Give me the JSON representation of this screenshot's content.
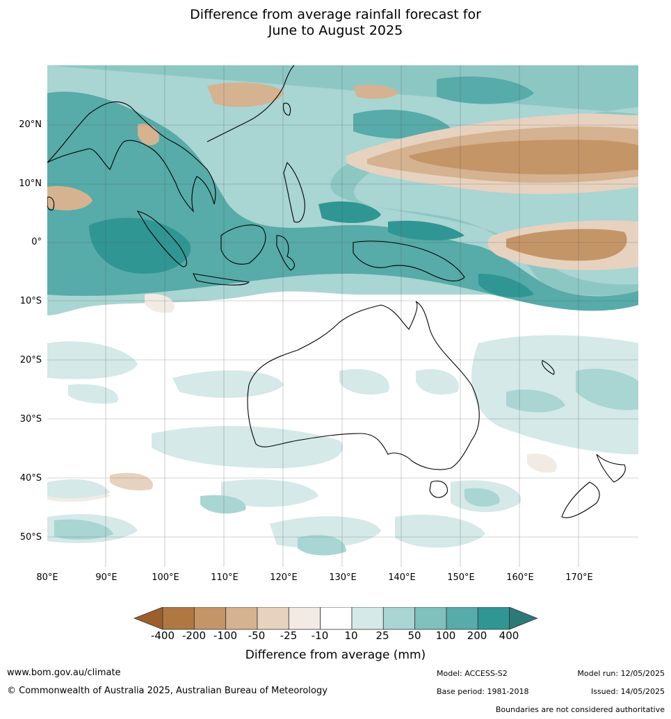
{
  "title_line1": "Difference from average rainfall forecast for",
  "title_line2": "June to August 2025",
  "lat_labels": [
    "20°N",
    "10°N",
    "0°",
    "10°S",
    "20°S",
    "30°S",
    "40°S",
    "50°S"
  ],
  "lon_labels": [
    "80°E",
    "90°E",
    "100°E",
    "110°E",
    "120°E",
    "130°E",
    "140°E",
    "150°E",
    "160°E",
    "170°E"
  ],
  "colorbar": {
    "title": "Difference from average (mm)",
    "ticks": [
      "-400",
      "-200",
      "-100",
      "-50",
      "-25",
      "-10",
      "10",
      "25",
      "50",
      "100",
      "200",
      "400"
    ],
    "colors": [
      "#9c5f2c",
      "#b07840",
      "#c49566",
      "#d5b290",
      "#e6d2bf",
      "#f2ebe4",
      "#ffffff",
      "#d4e9e8",
      "#a9d5d3",
      "#80c0bd",
      "#57aba8",
      "#2f9693",
      "#2b7a77"
    ]
  },
  "footer": {
    "url": "www.bom.gov.au/climate",
    "copyright": "© Commonwealth of Australia 2025, Australian Bureau of Meteorology",
    "model": "Model: ACCESS-S2",
    "base_period": "Base period: 1981-2018",
    "model_run": "Model run: 12/05/2025",
    "issued": "Issued: 14/05/2025",
    "disclaimer": "Boundaries are not considered authoritative"
  }
}
